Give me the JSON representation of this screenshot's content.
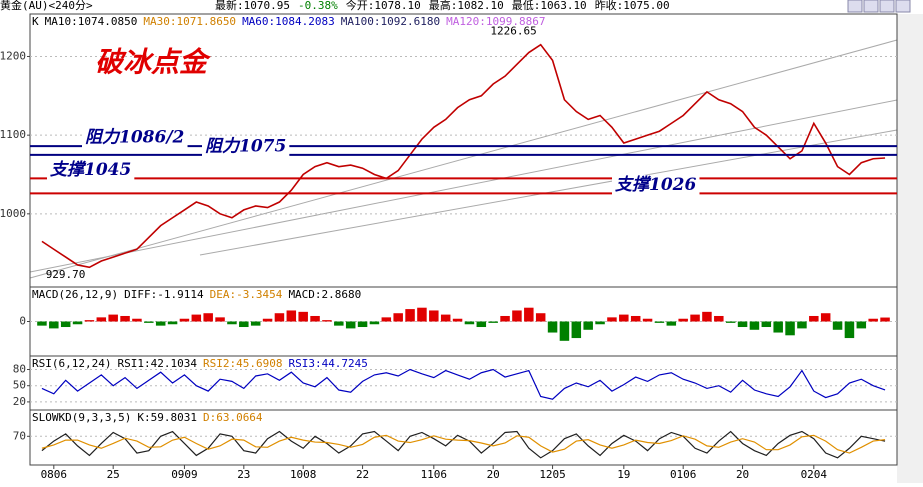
{
  "header": {
    "instrument": "黄金(AU)<240分>",
    "quote": [
      "最新:1070.95",
      "-0.38%",
      "今开:1078.10",
      "最高:1082.10",
      "最低:1063.10",
      "昨收:1075.00"
    ]
  },
  "chart_data": [
    {
      "type": "line",
      "title": "破冰点金",
      "legend": [
        {
          "text": "K",
          "color": "#000000"
        },
        {
          "text": "MA10:1074.0850",
          "color": "#000000"
        },
        {
          "text": "MA30:1071.8650",
          "color": "#d08000"
        },
        {
          "text": "MA60:1084.2083",
          "color": "#0000c0"
        },
        {
          "text": "MA100:1092.6180",
          "color": "#202060"
        },
        {
          "text": "MA120:1099.8867",
          "color": "#c060e0"
        }
      ],
      "categories": [
        null,
        "0806",
        null,
        null,
        null,
        null,
        "25",
        null,
        null,
        null,
        null,
        null,
        "0909",
        null,
        null,
        null,
        null,
        "23",
        null,
        null,
        null,
        null,
        "1008",
        null,
        null,
        null,
        null,
        "22",
        null,
        null,
        null,
        null,
        null,
        "1106",
        null,
        null,
        null,
        null,
        "20",
        null,
        null,
        null,
        null,
        "1205",
        null,
        null,
        null,
        null,
        null,
        "19",
        null,
        null,
        null,
        null,
        "0106",
        null,
        null,
        null,
        null,
        "20",
        null,
        null,
        null,
        null,
        null,
        "0204",
        null,
        null,
        null,
        null,
        null,
        null
      ],
      "series": [
        {
          "name": "K",
          "color": "#c00000",
          "values": [
            965,
            955,
            945,
            935,
            932,
            940,
            945,
            950,
            955,
            970,
            985,
            995,
            1005,
            1015,
            1010,
            1000,
            995,
            1005,
            1010,
            1008,
            1015,
            1030,
            1050,
            1060,
            1065,
            1060,
            1062,
            1058,
            1050,
            1045,
            1055,
            1075,
            1095,
            1110,
            1120,
            1135,
            1145,
            1150,
            1165,
            1175,
            1190,
            1205,
            1215,
            1195,
            1145,
            1130,
            1120,
            1125,
            1110,
            1090,
            1095,
            1100,
            1105,
            1115,
            1125,
            1140,
            1155,
            1145,
            1140,
            1130,
            1110,
            1100,
            1085,
            1070,
            1080,
            1115,
            1090,
            1060,
            1050,
            1065,
            1070,
            1070.95
          ]
        }
      ],
      "annotations": [
        {
          "label": "1226.65",
          "value": 1226.65
        },
        {
          "label": "929.70",
          "value": 929.7
        }
      ],
      "levels": [
        {
          "label": "阻力1086/2",
          "value": 1086,
          "color": "#000080"
        },
        {
          "label": "阻力1075",
          "value": 1075,
          "color": "#000080"
        },
        {
          "label": "支撑1045",
          "value": 1045,
          "color": "#cc0000"
        },
        {
          "label": "支撑1026",
          "value": 1026,
          "color": "#cc0000"
        }
      ],
      "ylim": [
        907,
        1254
      ],
      "yticks": [
        1000,
        1100,
        1200
      ],
      "grid": true
    },
    {
      "type": "bar",
      "legend": [
        {
          "text": "MACD(26,12,9)",
          "color": "#000000"
        },
        {
          "text": "DIFF:-1.9114",
          "color": "#000000"
        },
        {
          "text": "DEA:-3.3454",
          "color": "#d08000"
        },
        {
          "text": "MACD:2.8680",
          "color": "#000000"
        }
      ],
      "up_color": "#e00000",
      "down_color": "#008000",
      "series": [
        {
          "name": "MACD",
          "values": [
            -3,
            -5,
            -4,
            -2,
            1,
            3,
            5,
            4,
            2,
            -1,
            -3,
            -2,
            2,
            5,
            6,
            3,
            -2,
            -4,
            -3,
            2,
            6,
            8,
            7,
            4,
            1,
            -3,
            -5,
            -4,
            -2,
            3,
            6,
            9,
            10,
            8,
            5,
            2,
            -2,
            -4,
            -1,
            4,
            8,
            10,
            6,
            -8,
            -14,
            -12,
            -6,
            -2,
            3,
            5,
            4,
            2,
            -1,
            -3,
            2,
            5,
            7,
            4,
            -1,
            -4,
            -6,
            -4,
            -8,
            -10,
            -5,
            4,
            6,
            -6,
            -12,
            -5,
            2,
            2.868
          ]
        }
      ],
      "ylim": [
        -25,
        25
      ],
      "yticks": [
        0
      ],
      "grid": true
    },
    {
      "type": "line",
      "legend": [
        {
          "text": "RSI(6,12,24)",
          "color": "#000000"
        },
        {
          "text": "RSI1:42.1034",
          "color": "#000000"
        },
        {
          "text": "RSI2:45.6908",
          "color": "#d08000"
        },
        {
          "text": "RSI3:44.7245",
          "color": "#0000c0"
        }
      ],
      "series": [
        {
          "name": "RSI1",
          "color": "#0000c0",
          "values": [
            45,
            35,
            60,
            40,
            55,
            70,
            50,
            65,
            45,
            60,
            75,
            55,
            70,
            50,
            40,
            62,
            58,
            45,
            68,
            72,
            60,
            75,
            55,
            48,
            65,
            42,
            38,
            58,
            70,
            74,
            68,
            80,
            72,
            65,
            78,
            70,
            62,
            74,
            80,
            66,
            72,
            78,
            30,
            25,
            45,
            55,
            48,
            60,
            40,
            52,
            66,
            58,
            70,
            74,
            62,
            55,
            45,
            50,
            38,
            60,
            42,
            35,
            30,
            48,
            78,
            40,
            28,
            35,
            55,
            62,
            50,
            42.1034
          ]
        }
      ],
      "ylim": [
        5,
        105
      ],
      "yticks": [
        20,
        50,
        80
      ],
      "grid": true
    },
    {
      "type": "line",
      "legend": [
        {
          "text": "SLOWKD(9,3,3,5)",
          "color": "#000000"
        },
        {
          "text": "K:59.8031",
          "color": "#000000"
        },
        {
          "text": "D:63.0664",
          "color": "#d08000"
        }
      ],
      "series": [
        {
          "name": "K",
          "color": "#202020",
          "values": [
            40,
            60,
            75,
            50,
            30,
            55,
            78,
            65,
            35,
            40,
            70,
            80,
            55,
            30,
            45,
            75,
            70,
            40,
            35,
            65,
            80,
            60,
            45,
            70,
            55,
            35,
            50,
            75,
            80,
            60,
            40,
            70,
            78,
            65,
            50,
            72,
            60,
            35,
            55,
            78,
            80,
            45,
            25,
            40,
            65,
            75,
            50,
            30,
            55,
            72,
            60,
            40,
            65,
            78,
            70,
            45,
            35,
            60,
            80,
            55,
            40,
            30,
            55,
            72,
            80,
            65,
            35,
            25,
            45,
            70,
            65,
            59.8031
          ]
        },
        {
          "name": "D",
          "color": "#e09000",
          "values": [
            45,
            52,
            62,
            62,
            52,
            45,
            55,
            66,
            60,
            47,
            48,
            62,
            68,
            55,
            43,
            50,
            64,
            62,
            48,
            47,
            60,
            68,
            62,
            58,
            57,
            53,
            47,
            53,
            68,
            72,
            60,
            57,
            63,
            71,
            64,
            62,
            61,
            56,
            50,
            56,
            71,
            68,
            50,
            37,
            43,
            60,
            63,
            52,
            45,
            52,
            62,
            57,
            55,
            61,
            71,
            64,
            50,
            47,
            58,
            65,
            58,
            42,
            42,
            52,
            69,
            72,
            60,
            42,
            35,
            47,
            60,
            63.0664
          ]
        }
      ],
      "ylim": [
        10,
        125
      ],
      "yticks": [
        70
      ],
      "grid": true
    }
  ]
}
